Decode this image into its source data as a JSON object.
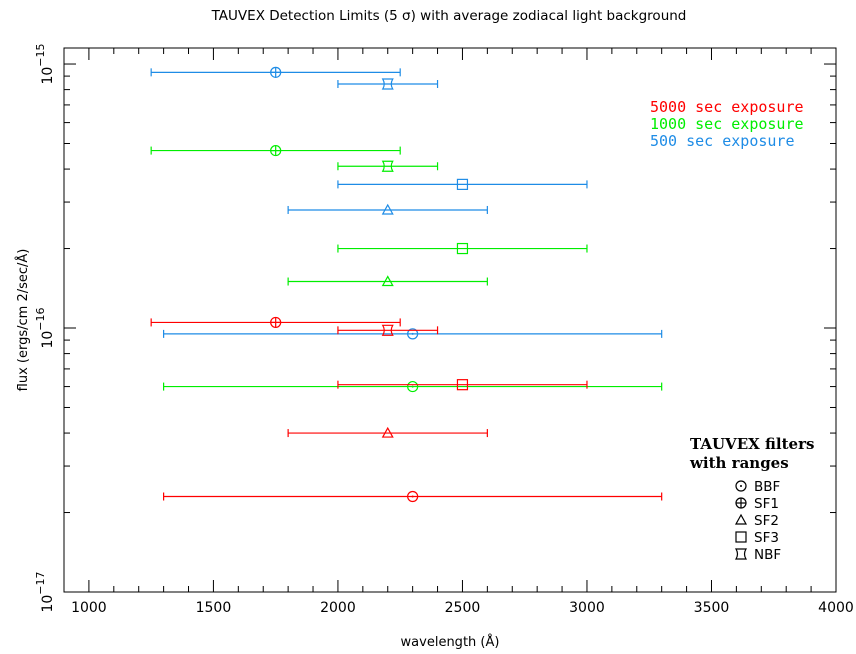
{
  "chart_data": {
    "type": "scatter",
    "title": "TAUVEX Detection Limits (5 σ) with average zodiacal light background",
    "xlabel": "wavelength (Å)",
    "ylabel": "flux (ergs/cm 2/sec/Å)",
    "xlim": [
      900,
      4000
    ],
    "ylim": [
      1e-17,
      1.15e-15
    ],
    "yscale": "log",
    "x_ticks": [
      {
        "value": 1000,
        "label": "1000"
      },
      {
        "value": 1500,
        "label": "1500"
      },
      {
        "value": 2000,
        "label": "2000"
      },
      {
        "value": 2500,
        "label": "2500"
      },
      {
        "value": 3000,
        "label": "3000"
      },
      {
        "value": 3500,
        "label": "3500"
      },
      {
        "value": 4000,
        "label": "4000"
      }
    ],
    "y_ticks": [
      {
        "value": 1e-17,
        "label": "10",
        "exp": "−17"
      },
      {
        "value": 1e-16,
        "label": "10",
        "exp": "−16"
      },
      {
        "value": 1e-15,
        "label": "10",
        "exp": "−15"
      }
    ],
    "exposure_legend": [
      {
        "name": "5000 sec exposure",
        "color": "#ff0000"
      },
      {
        "name": "1000 sec exposure",
        "color": "#00ee00"
      },
      {
        "name": "500 sec exposure",
        "color": "#1e8ce6"
      }
    ],
    "filter_legend": {
      "title_line1": "TAUVEX filters",
      "title_line2": "with ranges",
      "items": [
        {
          "symbol": "circle-dot",
          "label": "BBF"
        },
        {
          "symbol": "circle-plus",
          "label": "SF1"
        },
        {
          "symbol": "triangle",
          "label": "SF2"
        },
        {
          "symbol": "square",
          "label": "SF3"
        },
        {
          "symbol": "bowtie-square",
          "label": "NBF"
        }
      ]
    },
    "series": [
      {
        "name": "500 sec exposure",
        "color": "#1e8ce6",
        "points": [
          {
            "filter": "SF1",
            "x": 1750,
            "xmin": 1250,
            "xmax": 2250,
            "y": 9.3e-16
          },
          {
            "filter": "NBF",
            "x": 2200,
            "xmin": 2000,
            "xmax": 2400,
            "y": 8.4e-16
          },
          {
            "filter": "SF3",
            "x": 2500,
            "xmin": 2000,
            "xmax": 3000,
            "y": 3.5e-16
          },
          {
            "filter": "SF2",
            "x": 2200,
            "xmin": 1800,
            "xmax": 2600,
            "y": 2.8e-16
          },
          {
            "filter": "BBF",
            "x": 2300,
            "xmin": 1300,
            "xmax": 3300,
            "y": 9.5e-17
          }
        ]
      },
      {
        "name": "1000 sec exposure",
        "color": "#00ee00",
        "points": [
          {
            "filter": "SF1",
            "x": 1750,
            "xmin": 1250,
            "xmax": 2250,
            "y": 4.7e-16
          },
          {
            "filter": "NBF",
            "x": 2200,
            "xmin": 2000,
            "xmax": 2400,
            "y": 4.1e-16
          },
          {
            "filter": "SF3",
            "x": 2500,
            "xmin": 2000,
            "xmax": 3000,
            "y": 2e-16
          },
          {
            "filter": "SF2",
            "x": 2200,
            "xmin": 1800,
            "xmax": 2600,
            "y": 1.5e-16
          },
          {
            "filter": "BBF",
            "x": 2300,
            "xmin": 1300,
            "xmax": 3300,
            "y": 6e-17
          }
        ]
      },
      {
        "name": "5000 sec exposure",
        "color": "#ff0000",
        "points": [
          {
            "filter": "SF1",
            "x": 1750,
            "xmin": 1250,
            "xmax": 2250,
            "y": 1.05e-16
          },
          {
            "filter": "NBF",
            "x": 2200,
            "xmin": 2000,
            "xmax": 2400,
            "y": 9.8e-17
          },
          {
            "filter": "SF3",
            "x": 2500,
            "xmin": 2000,
            "xmax": 3000,
            "y": 6.1e-17
          },
          {
            "filter": "SF2",
            "x": 2200,
            "xmin": 1800,
            "xmax": 2600,
            "y": 4e-17
          },
          {
            "filter": "BBF",
            "x": 2300,
            "xmin": 1300,
            "xmax": 3300,
            "y": 2.3e-17
          }
        ]
      }
    ]
  }
}
